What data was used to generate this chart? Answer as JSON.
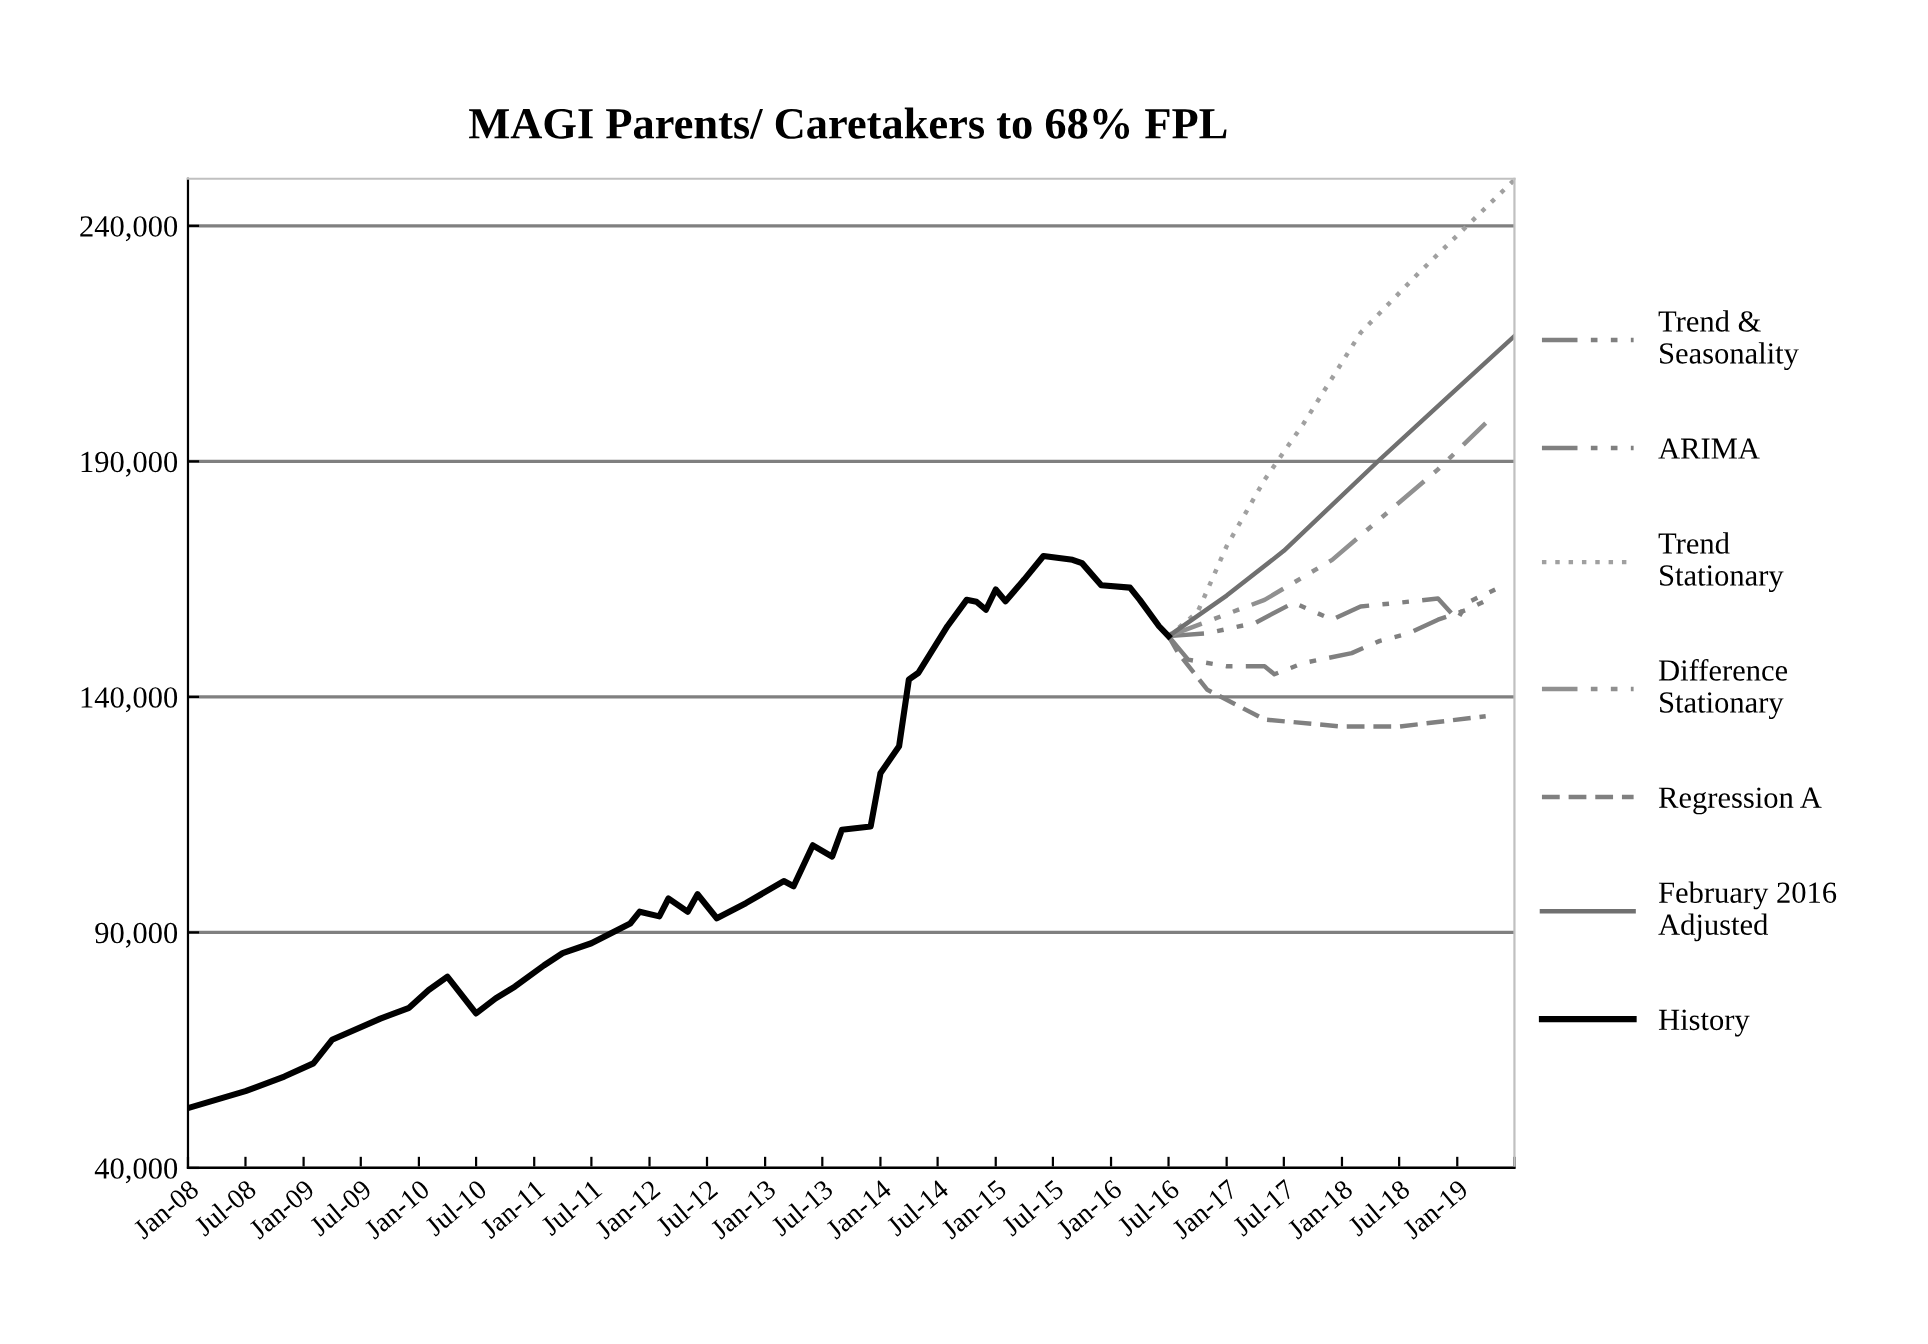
{
  "chart_data": {
    "type": "line",
    "title": "MAGI Parents/ Caretakers to 68% FPL",
    "xlim": [
      "2008-01",
      "2019-07"
    ],
    "xticks": [
      {
        "value": "2008-01",
        "label": "Jan-08"
      },
      {
        "value": "2008-07",
        "label": "Jul-08"
      },
      {
        "value": "2009-01",
        "label": "Jan-09"
      },
      {
        "value": "2009-07",
        "label": "Jul-09"
      },
      {
        "value": "2010-01",
        "label": "Jan-10"
      },
      {
        "value": "2010-07",
        "label": "Jul-10"
      },
      {
        "value": "2011-01",
        "label": "Jan-11"
      },
      {
        "value": "2011-07",
        "label": "Jul-11"
      },
      {
        "value": "2012-01",
        "label": "Jan-12"
      },
      {
        "value": "2012-07",
        "label": "Jul-12"
      },
      {
        "value": "2013-01",
        "label": "Jan-13"
      },
      {
        "value": "2013-07",
        "label": "Jul-13"
      },
      {
        "value": "2014-01",
        "label": "Jan-14"
      },
      {
        "value": "2014-07",
        "label": "Jul-14"
      },
      {
        "value": "2015-01",
        "label": "Jan-15"
      },
      {
        "value": "2015-07",
        "label": "Jul-15"
      },
      {
        "value": "2016-01",
        "label": "Jan-16"
      },
      {
        "value": "2016-07",
        "label": "Jul-16"
      },
      {
        "value": "2017-01",
        "label": "Jan-17"
      },
      {
        "value": "2017-07",
        "label": "Jul-17"
      },
      {
        "value": "2018-01",
        "label": "Jan-18"
      },
      {
        "value": "2018-07",
        "label": "Jul-18"
      },
      {
        "value": "2019-01",
        "label": "Jan-19"
      },
      {
        "value": "2019-07",
        "label": null
      }
    ],
    "ylim": [
      40000,
      250000
    ],
    "yticks": [
      {
        "value": 40000,
        "label": "40,000"
      },
      {
        "value": 90000,
        "label": "90,000"
      },
      {
        "value": 140000,
        "label": "140,000"
      },
      {
        "value": 190000,
        "label": "190,000"
      },
      {
        "value": 240000,
        "label": "240,000"
      }
    ],
    "grid": "y",
    "legend": "right",
    "series": [
      {
        "name": "Trend &\nSeasonality",
        "color": "#808080",
        "line_style": "dashdot",
        "x": [
          "2016-07",
          "2016-11",
          "2017-04",
          "2017-08",
          "2017-12",
          "2018-03",
          "2018-07",
          "2018-11",
          "2019-01",
          "2019-02",
          "2019-05"
        ],
        "values": [
          152900,
          153500,
          155700,
          160000,
          156400,
          159200,
          160000,
          160900,
          156400,
          160000,
          162800
        ]
      },
      {
        "name": "ARIMA",
        "color": "#808080",
        "line_style": "dashdot",
        "x": [
          "2016-07",
          "2016-09",
          "2017-01",
          "2017-05",
          "2017-06",
          "2017-09",
          "2018-02",
          "2018-05",
          "2018-08",
          "2018-11",
          "2019-02",
          "2019-05"
        ],
        "values": [
          152900,
          147900,
          146500,
          146500,
          144800,
          147200,
          149300,
          151900,
          153500,
          156400,
          158500,
          161400
        ]
      },
      {
        "name": "Trend\nStationary",
        "color": "#a0a0a0",
        "line_style": "dotted",
        "x": [
          "2016-07",
          "2016-10",
          "2017-01",
          "2017-05",
          "2017-09",
          "2018-03",
          "2018-09",
          "2019-02",
          "2019-07"
        ],
        "values": [
          152900,
          158000,
          172000,
          186100,
          198000,
          217300,
          230000,
          240000,
          249800
        ]
      },
      {
        "name": "Difference\nStationary",
        "color": "#909090",
        "line_style": "dashdot",
        "x": [
          "2016-07",
          "2017-05",
          "2017-12",
          "2018-11",
          "2019-04"
        ],
        "values": [
          152900,
          160600,
          169100,
          188300,
          198100
        ]
      },
      {
        "name": "Regression A",
        "color": "#808080",
        "line_style": "dashed",
        "x": [
          "2016-07",
          "2016-08",
          "2016-11",
          "2017-05",
          "2018-01",
          "2018-07",
          "2019-04"
        ],
        "values": [
          152900,
          149300,
          141500,
          135200,
          133700,
          133700,
          135900
        ]
      },
      {
        "name": "February 2016\nAdjusted",
        "color": "#707070",
        "line_style": "solid",
        "x": [
          "2016-07",
          "2017-01",
          "2017-07",
          "2018-05",
          "2018-12",
          "2019-07"
        ],
        "values": [
          152900,
          161500,
          171000,
          190400,
          203600,
          216600
        ]
      },
      {
        "name": "History",
        "color": "#000000",
        "line_style": "solid",
        "x": [
          "2008-01",
          "2008-07",
          "2008-11",
          "2009-02",
          "2009-04",
          "2009-09",
          "2009-12",
          "2010-02",
          "2010-04",
          "2010-07",
          "2010-09",
          "2010-11",
          "2011-02",
          "2011-04",
          "2011-07",
          "2011-11",
          "2011-12",
          "2012-02",
          "2012-03",
          "2012-05",
          "2012-06",
          "2012-08",
          "2012-11",
          "2013-03",
          "2013-04",
          "2013-06",
          "2013-08",
          "2013-09",
          "2013-12",
          "2014-01",
          "2014-03",
          "2014-04",
          "2014-05",
          "2014-08",
          "2014-10",
          "2014-11",
          "2014-12",
          "2015-01",
          "2015-02",
          "2015-04",
          "2015-06",
          "2015-09",
          "2015-10",
          "2015-12",
          "2016-03",
          "2016-04",
          "2016-06",
          "2016-07"
        ],
        "values": [
          52700,
          56300,
          59400,
          62200,
          67200,
          71700,
          74000,
          77800,
          80600,
          72800,
          76000,
          78500,
          83000,
          85600,
          87700,
          91900,
          94400,
          93400,
          97200,
          94400,
          98100,
          93000,
          96200,
          100900,
          99800,
          108500,
          106100,
          111800,
          112500,
          123800,
          129500,
          143700,
          145100,
          155000,
          160600,
          160200,
          158500,
          162800,
          160300,
          164900,
          169900,
          169100,
          168400,
          163700,
          163200,
          160600,
          155000,
          152900
        ]
      }
    ]
  }
}
